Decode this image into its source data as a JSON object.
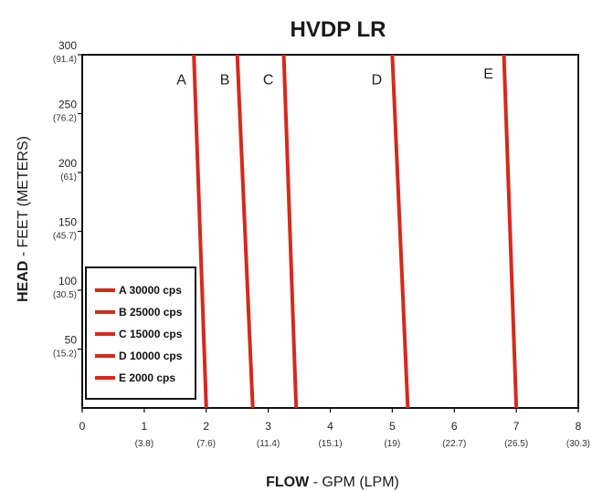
{
  "chart_data": {
    "type": "line",
    "title": "HVDP LR",
    "xlabel_bold": "FLOW",
    "xlabel_rest": " - GPM (LPM)",
    "ylabel_bold": "HEAD",
    "ylabel_rest": " - FEET (METERS)",
    "xlim": [
      0,
      8
    ],
    "ylim": [
      0,
      300
    ],
    "x_ticks": [
      {
        "value": 0,
        "label": "0",
        "sub": ""
      },
      {
        "value": 1,
        "label": "1",
        "sub": "(3.8)"
      },
      {
        "value": 2,
        "label": "2",
        "sub": "(7.6)"
      },
      {
        "value": 3,
        "label": "3",
        "sub": "(11.4)"
      },
      {
        "value": 4,
        "label": "4",
        "sub": "(15.1)"
      },
      {
        "value": 5,
        "label": "5",
        "sub": "(19)"
      },
      {
        "value": 6,
        "label": "6",
        "sub": "(22.7)"
      },
      {
        "value": 7,
        "label": "7",
        "sub": "(26.5)"
      },
      {
        "value": 8,
        "label": "8",
        "sub": "(30.3)"
      }
    ],
    "y_ticks": [
      {
        "value": 50,
        "label": "50",
        "sub": "(15.2)"
      },
      {
        "value": 100,
        "label": "100",
        "sub": "(30.5)"
      },
      {
        "value": 150,
        "label": "150",
        "sub": "(45.7)"
      },
      {
        "value": 200,
        "label": "200",
        "sub": "(61)"
      },
      {
        "value": 250,
        "label": "250",
        "sub": "(76.2)"
      },
      {
        "value": 300,
        "label": "300",
        "sub": "(91.4)"
      }
    ],
    "series": [
      {
        "name": "A 30000 cps",
        "label": "A",
        "x": [
          2.0,
          1.8
        ],
        "y": [
          0,
          300
        ],
        "label_at": [
          1.6,
          275
        ]
      },
      {
        "name": "B 25000 cps",
        "label": "B",
        "x": [
          2.75,
          2.5
        ],
        "y": [
          0,
          300
        ],
        "label_at": [
          2.3,
          275
        ]
      },
      {
        "name": "C 15000 cps",
        "label": "C",
        "x": [
          3.45,
          3.25
        ],
        "y": [
          0,
          300
        ],
        "label_at": [
          3.0,
          275
        ]
      },
      {
        "name": "D 10000 cps",
        "label": "D",
        "x": [
          5.25,
          5.0
        ],
        "y": [
          0,
          300
        ],
        "label_at": [
          4.75,
          275
        ]
      },
      {
        "name": "E 2000 cps",
        "label": "E",
        "x": [
          7.0,
          6.8
        ],
        "y": [
          0,
          300
        ],
        "label_at": [
          6.55,
          280
        ]
      }
    ],
    "line_color": "#d42a1c",
    "grid": false,
    "legend_position": "bottom-left"
  }
}
